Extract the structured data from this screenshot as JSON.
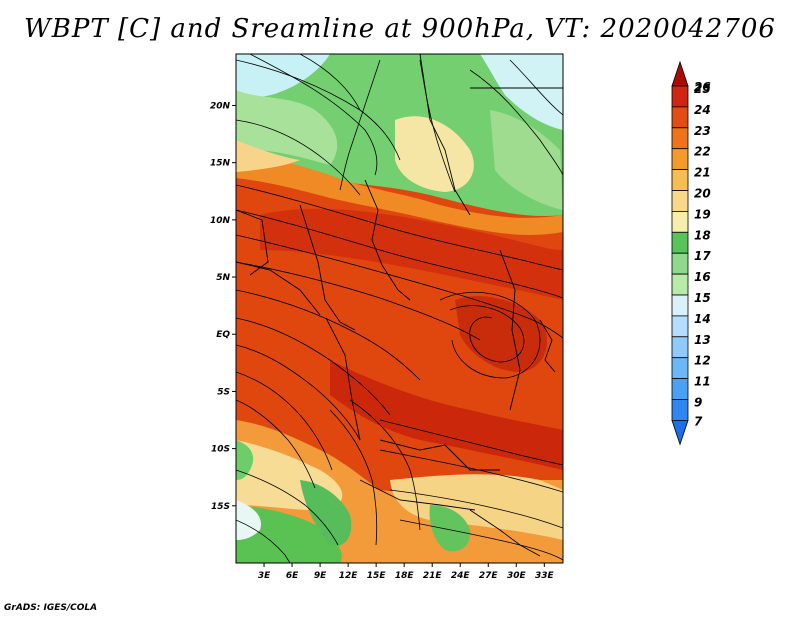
{
  "title": "WBPT [C] and Sreamline at 900hPa, VT: 2020042706",
  "credit": "GrADS: IGES/COLA",
  "map": {
    "lat_labels": [
      "20N",
      "15N",
      "10N",
      "5N",
      "EQ",
      "5S",
      "10S",
      "15S"
    ],
    "lat_values": [
      20,
      15,
      10,
      5,
      0,
      -5,
      -10,
      -15
    ],
    "lon_labels": [
      "3E",
      "6E",
      "9E",
      "12E",
      "15E",
      "18E",
      "21E",
      "24E",
      "27E",
      "30E",
      "33E"
    ],
    "lon_values": [
      3,
      6,
      9,
      12,
      15,
      18,
      21,
      24,
      27,
      30,
      33
    ],
    "lat_range": [
      -20,
      24.5
    ],
    "lon_range": [
      0,
      35
    ]
  },
  "colorbar": {
    "labels": [
      "7",
      "9",
      "11",
      "12",
      "13",
      "14",
      "15",
      "16",
      "17",
      "18",
      "19",
      "20",
      "21",
      "22",
      "23",
      "24",
      "25",
      "26"
    ],
    "colors": [
      "#1e6ee6",
      "#2f86f0",
      "#4aa0f5",
      "#6ab8f8",
      "#8ecbfb",
      "#b3defd",
      "#d8f1fb",
      "#b6eba8",
      "#8ed98a",
      "#57c458",
      "#f7eeaa",
      "#f8d98a",
      "#f6bd55",
      "#f39b2b",
      "#ef7419",
      "#e24d14",
      "#cf2512",
      "#ad0a06"
    ]
  },
  "colors": {
    "tropics_core": "#dd3c10",
    "tropics_hot": "#c01e0a",
    "sahel_cool": "#6dc86a",
    "south_warm": "#f6c36c"
  }
}
